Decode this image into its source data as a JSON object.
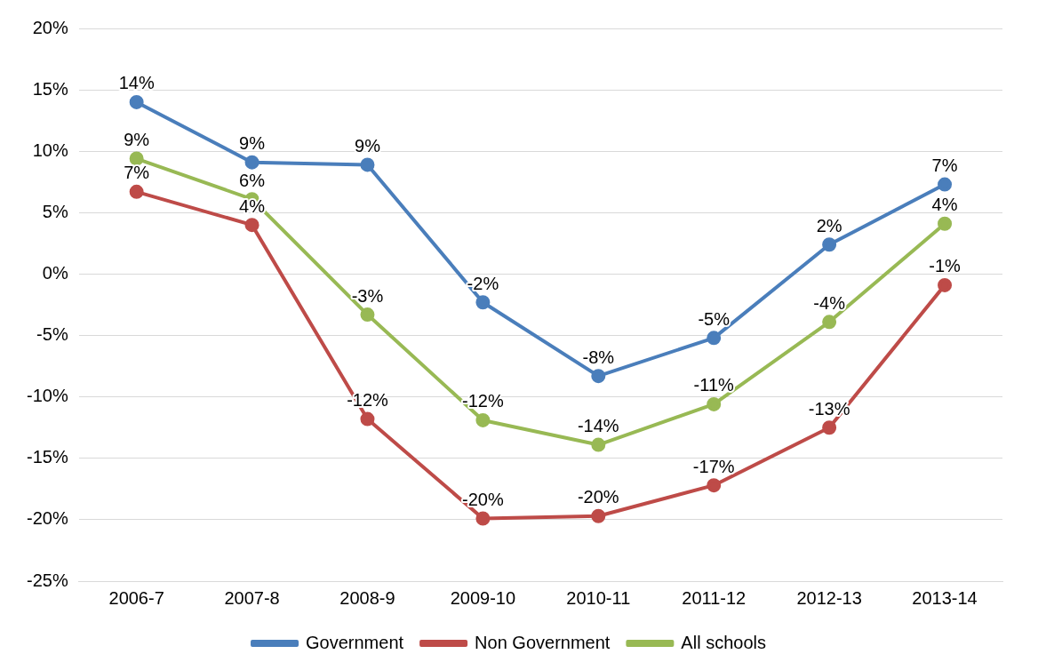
{
  "chart_data": {
    "type": "line",
    "categories": [
      "2006-7",
      "2007-8",
      "2008-9",
      "2009-10",
      "2010-11",
      "2011-12",
      "2012-13",
      "2013-14"
    ],
    "series": [
      {
        "name": "Government",
        "color": "#4a7ebb",
        "values": [
          14.0,
          9.1,
          8.9,
          -2.3,
          -8.3,
          -5.2,
          2.4,
          7.3
        ],
        "value_labels": [
          "14%",
          "9%",
          "9%",
          "-2%",
          "-8%",
          "-5%",
          "2%",
          "7%"
        ]
      },
      {
        "name": "Non Government",
        "color": "#be4b48",
        "values": [
          6.7,
          4.0,
          -11.8,
          -19.9,
          -19.7,
          -17.2,
          -12.5,
          -0.9
        ],
        "value_labels": [
          "7%",
          "4%",
          "-12%",
          "-20%",
          "-20%",
          "-17%",
          "-13%",
          "-1%"
        ]
      },
      {
        "name": "All schools",
        "color": "#98b954",
        "values": [
          9.4,
          6.1,
          -3.3,
          -11.9,
          -13.9,
          -10.6,
          -3.9,
          4.1
        ],
        "value_labels": [
          "9%",
          "6%",
          "-3%",
          "-12%",
          "-14%",
          "-11%",
          "-4%",
          "4%"
        ]
      }
    ],
    "ylim": [
      -25,
      20
    ],
    "yticks": [
      {
        "value": -25,
        "label": "-25%"
      },
      {
        "value": -20,
        "label": "-20%"
      },
      {
        "value": -15,
        "label": "-15%"
      },
      {
        "value": -10,
        "label": "-10%"
      },
      {
        "value": -5,
        "label": "-5%"
      },
      {
        "value": 0,
        "label": "0%"
      },
      {
        "value": 5,
        "label": "5%"
      },
      {
        "value": 10,
        "label": "10%"
      },
      {
        "value": 15,
        "label": "15%"
      },
      {
        "value": 20,
        "label": "20%"
      }
    ],
    "grid": "y",
    "legend": "bottom",
    "marker": "circle",
    "line_style": "solid"
  }
}
